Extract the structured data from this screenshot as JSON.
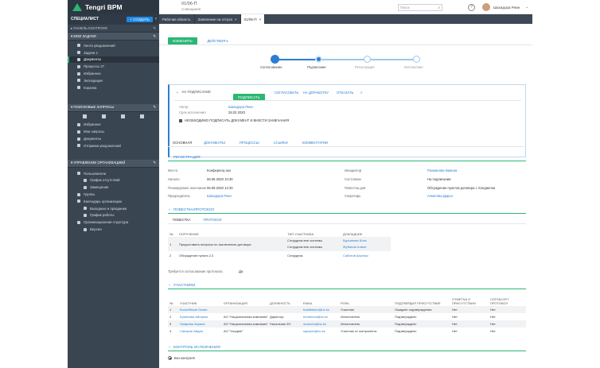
{
  "app": {
    "logo": "Tengri BPM"
  },
  "sidebar": {
    "user": "СПЕЦИАЛИСТ",
    "create_label": "СОЗДАТЬ",
    "control_panel": "ПАНЕЛЬ КОНТРОЛЯ",
    "my_tasks": "МОИ ЗАДАЧИ",
    "task_items": [
      {
        "label": "Лента уведомлений"
      },
      {
        "label": "Задачи 1"
      },
      {
        "label": "Документы"
      },
      {
        "label": "Процессы 27"
      },
      {
        "label": "Избранное"
      },
      {
        "label": "Экспедиция"
      },
      {
        "label": "Корзина"
      }
    ],
    "search_queries": "ПОИСКОВЫЕ ЗАПРОСЫ",
    "query_items": [
      {
        "label": "Избранное"
      },
      {
        "label": "Мои запросы"
      },
      {
        "label": "Документы"
      },
      {
        "label": "Отправка уведомлений"
      }
    ],
    "org_management": "УПРАВЛЕНИЕ ОРГАНИЗАЦИЕЙ",
    "org_items": [
      {
        "label": "Пользователи",
        "level": 1
      },
      {
        "label": "График отсутствий",
        "level": 2
      },
      {
        "label": "Замещения",
        "level": 2
      },
      {
        "label": "Группы",
        "level": 1
      },
      {
        "label": "Календарь организации",
        "level": 1
      },
      {
        "label": "Выходные и праздники",
        "level": 2
      },
      {
        "label": "График работы",
        "level": 2
      },
      {
        "label": "Организационная структура",
        "level": 1
      },
      {
        "label": "Версии",
        "level": 2
      }
    ]
  },
  "header": {
    "doc_number": "01/06-П",
    "doc_type": "Совещания",
    "search_placeholder": "Поиск",
    "user_name": "Шахидора Реин"
  },
  "tabs": [
    {
      "label": "Рабочая область",
      "active": false
    },
    {
      "label": "Заявление на отпуск",
      "active": false
    },
    {
      "label": "01/06-П",
      "active": true
    }
  ],
  "toolbar": {
    "edit_label": "ИЗМЕНИТЬ",
    "actions_label": "ДЕЙСТВИЯ"
  },
  "stepper": [
    {
      "label": "Согласование",
      "state": "done"
    },
    {
      "label": "Подписание",
      "state": "current"
    },
    {
      "label": "Регистрация",
      "state": "todo"
    },
    {
      "label": "Исполнение",
      "state": "todo"
    }
  ],
  "signing": {
    "title": "НА ПОДПИСАНИЕ",
    "sign_label": "ПОДПИСАТЬ",
    "actions": [
      "СОГЛАСОВАТЬ",
      "НА ДОРАБОТКУ",
      "ОТКАЗАТЬ"
    ],
    "author_label": "Автор",
    "author_value": "Шахидора Реин",
    "deadline_label": "Срок исполнения",
    "deadline_value": "28.02.2020",
    "note": "НЕОБХОДИМО ПОДПИСАТЬ ДОКУМЕНТ И ВНЕСТИ ЗАМЕЧАНИЯ"
  },
  "doc_tabs": [
    "ОСНОВНАЯ",
    "ДОКУМЕНТЫ",
    "ПРОЦЕССЫ",
    "ССЫЛКИ",
    "КОММЕНТАРИИ"
  ],
  "registration": {
    "title": "РЕГИСТРАЦИЯ",
    "left": [
      {
        "label": "Место",
        "value": "Конференц-зал",
        "link": false
      },
      {
        "label": "Начало",
        "value": "06.06.2020 10:30",
        "link": false
      },
      {
        "label": "Планируемое окончание",
        "value": "06.06.2020 12:30",
        "link": false
      },
      {
        "label": "Председатель",
        "value": "Шахидора Реин",
        "link": true
      }
    ],
    "right": [
      {
        "label": "Инициатор",
        "value": "Рахманова Камила",
        "link": true
      },
      {
        "label": "Состояние",
        "value": "На подписании",
        "link": false
      },
      {
        "label": "Повестка дня",
        "value": "Обсуждение пунктов договора с Холдингом",
        "link": false
      },
      {
        "label": "Секретарь",
        "value": "Ахметова Дарья",
        "link": true
      }
    ]
  },
  "agenda": {
    "title": "ПОВЕСТКА/ПРОТОКОЛ",
    "tabs": [
      "ПОВЕСТКА",
      "ПРОТОКОЛ"
    ],
    "columns": [
      "№",
      "ПОРУЧЕНИЕ",
      "ТИП УЧАСТНИКА",
      "ДОКЛАДЧИК"
    ],
    "rows": [
      {
        "num": "1",
        "task": "Предоставить вопросы по заключению договора",
        "types": [
          "Сотрудник вне системы",
          "Сотрудник вне системы"
        ],
        "speakers": [
          "Бурханова Бота",
          "Жубанов Алмат"
        ]
      },
      {
        "num": "2",
        "task": "Обсуждение пункта 2.3",
        "types": [
          "Сотрудник"
        ],
        "speakers": [
          "Сабитов Шынгыс"
        ]
      }
    ],
    "protocol_required_label": "Требуется согласование протокола",
    "protocol_required_value": "Да"
  },
  "participants": {
    "title": "УЧАСТНИКИ",
    "columns": [
      "№",
      "УЧАСТНИК",
      "ОРГАНИЗАЦИЯ",
      "ДОЛЖНОСТЬ",
      "EMAIL",
      "РОЛЬ",
      "ПОДТВЕРДИЛ ПРИСУТСТВИЕ",
      "ОТМЕТКА О ПРИСУТСТВИИ",
      "СОГЛАСУЕТ ПРОТОКОЛ"
    ],
    "rows": [
      {
        "num": "1",
        "name": "Болатбеков Оспан",
        "org": "",
        "position": "",
        "email": "bolatbekov@nc.kz",
        "role": "Участник",
        "confirmed": "Ожидает подтверждения",
        "mark": "Нет",
        "approves": "Нет"
      },
      {
        "num": "2",
        "name": "Ермекова Айгерим",
        "org": "АО \"Национальная компания\"",
        "position": "Директор",
        "email": "ermekova@nc.kz",
        "role": "Исполнитель",
        "confirmed": "Подтверждено",
        "mark": "Нет",
        "approves": "Нет"
      },
      {
        "num": "3",
        "name": "Омарова Зарина",
        "org": "АО \"Национальная компания\"",
        "position": "Начальник ЗО",
        "email": "omarova@nc.kz",
        "role": "Исполнитель",
        "confirmed": "Подтверждено",
        "mark": "Нет",
        "approves": "Нет"
      },
      {
        "num": "4",
        "name": "Сапаров Айдан",
        "org": "АО \"Холдинг\"",
        "position": "",
        "email": "saparov@nc.kz",
        "role": "Участник от контрагента",
        "confirmed": "Подтверждено",
        "mark": "Нет",
        "approves": "Нет"
      }
    ]
  },
  "control": {
    "title": "КОНТРОЛЬ ИСПОЛНЕНИЯ",
    "option": "Без контроля"
  },
  "colors": {
    "accent": "#2bb673",
    "link": "#2a7fd4",
    "sidebar": "#3a4552"
  }
}
